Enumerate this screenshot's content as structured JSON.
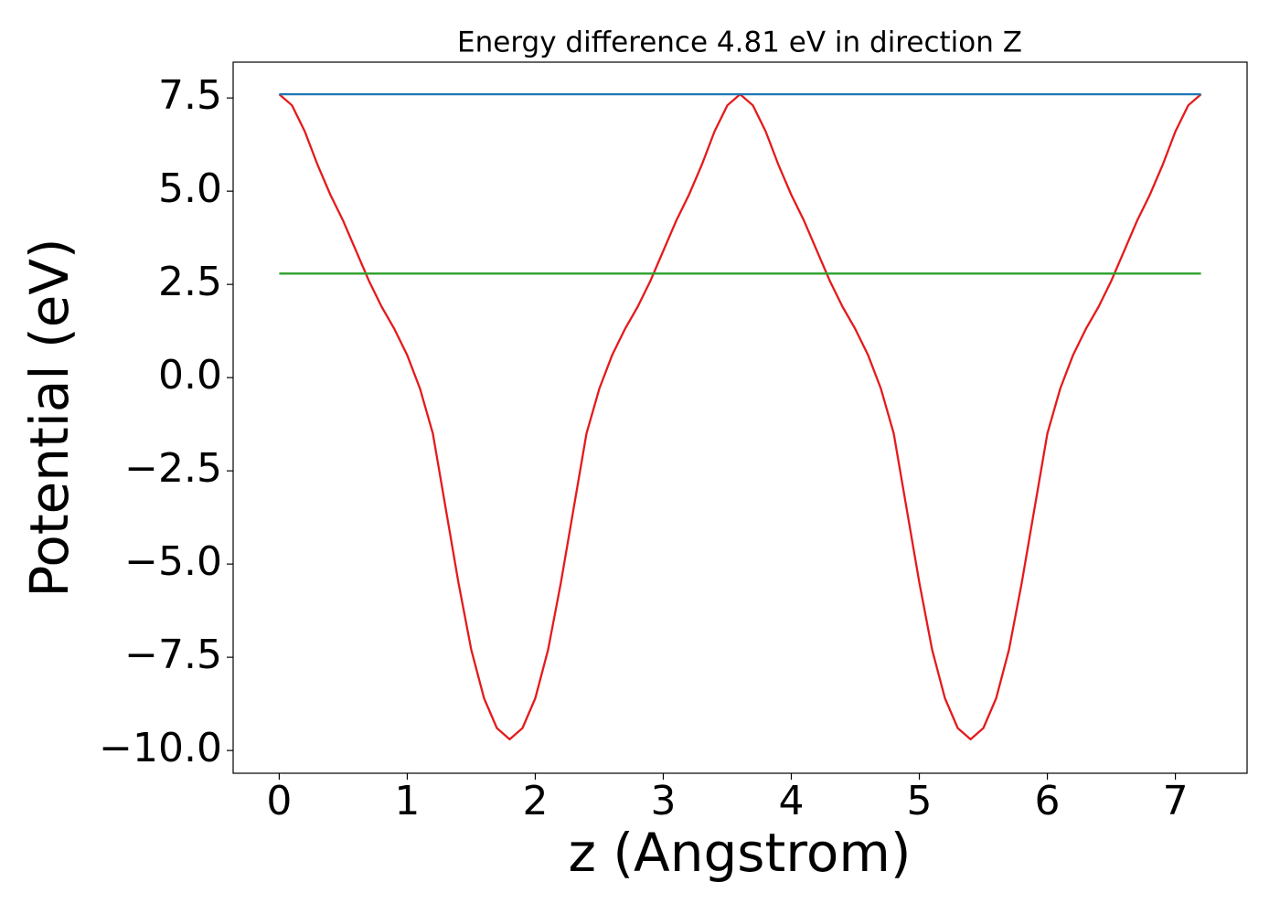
{
  "chart_data": {
    "type": "line",
    "title": "Energy difference 4.81 eV in direction Z",
    "x_label": "z (Angstrom)",
    "y_label": "Potential (eV)",
    "xlim": [
      -0.36,
      7.56
    ],
    "ylim": [
      -10.61,
      8.46
    ],
    "xticks": [
      0,
      1,
      2,
      3,
      4,
      5,
      6,
      7
    ],
    "yticks": [
      {
        "value": -10,
        "label": "−10.0"
      },
      {
        "value": -7.5,
        "label": "−7.5"
      },
      {
        "value": -5,
        "label": "−5.0"
      },
      {
        "value": -2.5,
        "label": "−2.5"
      },
      {
        "value": 0,
        "label": "0.0"
      },
      2.5,
      {
        "value": 5,
        "label": "5.0"
      },
      7.5
    ],
    "grid": false,
    "series": [
      {
        "color": "#e41a1c",
        "x": [
          0,
          0.1,
          0.2,
          0.3,
          0.4,
          0.5,
          0.6,
          0.7,
          0.8,
          0.9,
          1.0,
          1.1,
          1.2,
          1.3,
          1.4,
          1.5,
          1.6,
          1.7,
          1.8,
          1.9,
          2.0,
          2.1,
          2.2,
          2.3,
          2.4,
          2.5,
          2.6,
          2.7,
          2.8,
          2.9,
          3.0,
          3.1,
          3.2,
          3.3,
          3.4,
          3.5,
          3.6,
          3.7,
          3.8,
          3.9,
          4.0,
          4.1,
          4.2,
          4.3,
          4.4,
          4.5,
          4.6,
          4.7,
          4.8,
          4.9,
          5.0,
          5.1,
          5.2,
          5.3,
          5.4,
          5.5,
          5.6,
          5.7,
          5.8,
          5.9,
          6.0,
          6.1,
          6.2,
          6.3,
          6.4,
          6.5,
          6.6,
          6.7,
          6.8,
          6.9,
          7.0,
          7.1,
          7.2
        ],
        "values": [
          7.6,
          7.3,
          6.6,
          5.7,
          4.9,
          4.2,
          3.4,
          2.6,
          1.9,
          1.3,
          0.6,
          -0.3,
          -1.5,
          -3.5,
          -5.5,
          -7.3,
          -8.6,
          -9.4,
          -9.7,
          -9.4,
          -8.6,
          -7.3,
          -5.5,
          -3.5,
          -1.5,
          -0.3,
          0.6,
          1.3,
          1.9,
          2.6,
          3.4,
          4.2,
          4.9,
          5.7,
          6.6,
          7.3,
          7.6,
          7.3,
          6.6,
          5.7,
          4.9,
          4.2,
          3.4,
          2.6,
          1.9,
          1.3,
          0.6,
          -0.3,
          -1.5,
          -3.5,
          -5.5,
          -7.3,
          -8.6,
          -9.4,
          -9.7,
          -9.4,
          -8.6,
          -7.3,
          -5.5,
          -3.5,
          -1.5,
          -0.3,
          0.6,
          1.3,
          1.9,
          2.6,
          3.4,
          4.2,
          4.9,
          5.7,
          6.6,
          7.3,
          7.6
        ]
      },
      {
        "color": "#1f77b4",
        "x": [
          0,
          7.2
        ],
        "values": [
          7.6,
          7.6
        ]
      },
      {
        "color": "#2ca02c",
        "x": [
          0,
          7.2
        ],
        "values": [
          2.79,
          2.79
        ]
      }
    ]
  }
}
